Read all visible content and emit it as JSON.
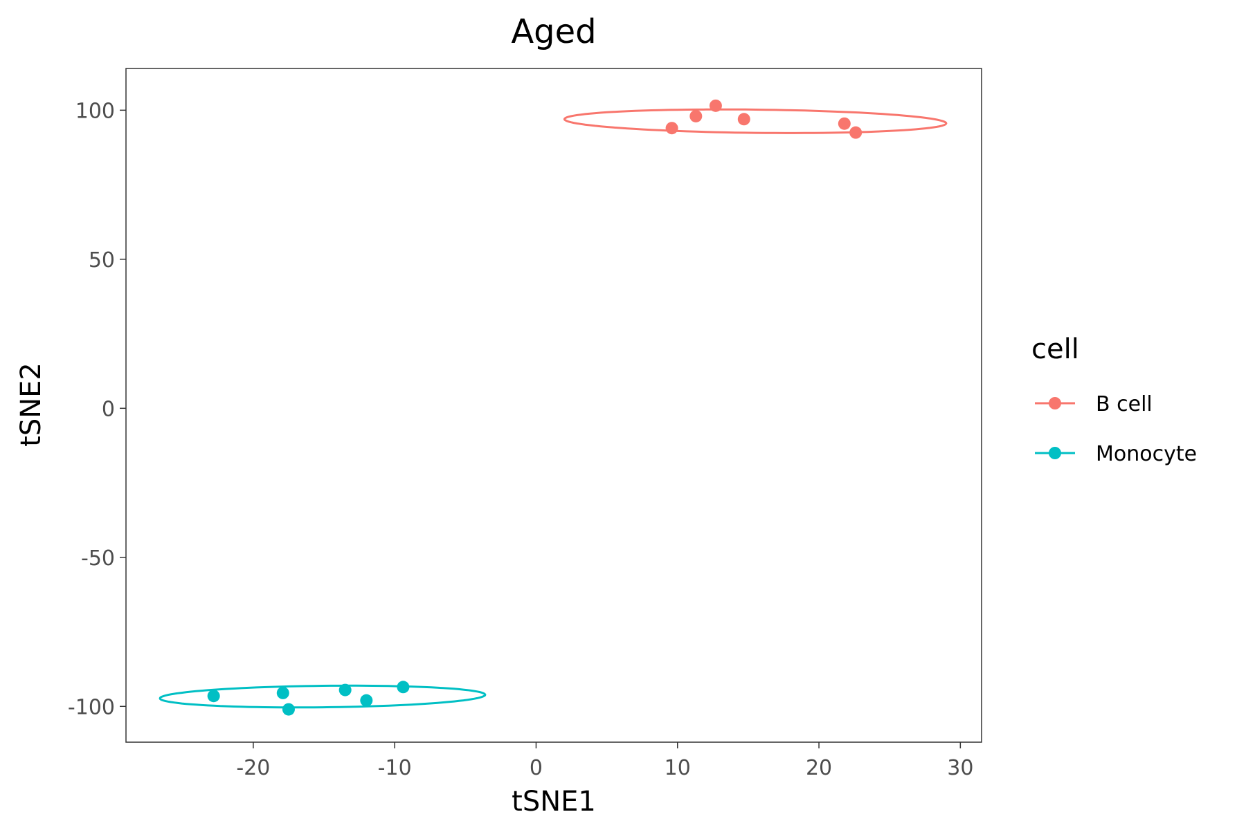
{
  "chart_data": {
    "type": "scatter",
    "title": "Aged",
    "xlabel": "tSNE1",
    "ylabel": "tSNE2",
    "xlim": [
      -29,
      31.5
    ],
    "ylim": [
      -112,
      114
    ],
    "xticks": [
      -20,
      -10,
      0,
      10,
      20,
      30
    ],
    "yticks": [
      -100,
      -50,
      0,
      50,
      100
    ],
    "xtick_labels": [
      "-20",
      "-10",
      "0",
      "10",
      "20",
      "30"
    ],
    "ytick_labels": [
      "-100",
      "-50",
      "0",
      "50",
      "100"
    ],
    "grid": false,
    "legend": {
      "title": "cell",
      "position": "right"
    },
    "series": [
      {
        "name": "B cell",
        "color": "#F8766D",
        "points": [
          [
            9.6,
            94
          ],
          [
            11.3,
            98
          ],
          [
            12.7,
            101.5
          ],
          [
            14.7,
            97
          ],
          [
            21.8,
            95.5
          ],
          [
            22.6,
            92.5
          ]
        ],
        "ellipse": {
          "center": [
            15.5,
            96.3
          ],
          "semi_major": 13.5,
          "semi_minor": 1.3,
          "angle_deg": -1.0
        }
      },
      {
        "name": "Monocyte",
        "color": "#00BFC4",
        "points": [
          [
            -22.8,
            -96.5
          ],
          [
            -17.9,
            -95.5
          ],
          [
            -17.5,
            -101
          ],
          [
            -13.5,
            -94.5
          ],
          [
            -12,
            -98
          ],
          [
            -9.4,
            -93.5
          ]
        ],
        "ellipse": {
          "center": [
            -15.1,
            -96.7
          ],
          "semi_major": 11.5,
          "semi_minor": 1.2,
          "angle_deg": 1.0
        }
      }
    ]
  }
}
